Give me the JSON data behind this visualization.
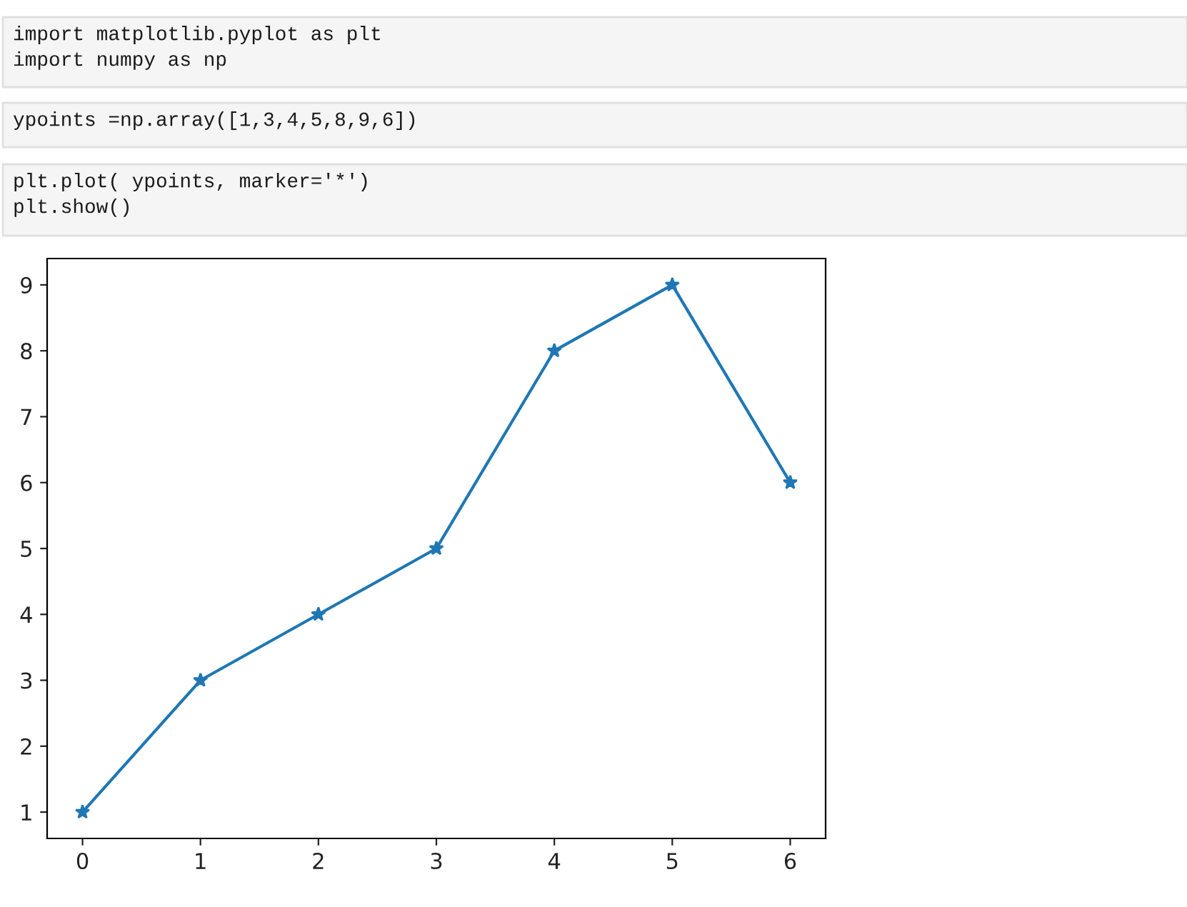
{
  "chart_data": {
    "type": "line",
    "x": [
      0,
      1,
      2,
      3,
      4,
      5,
      6
    ],
    "series": [
      {
        "color": "#1f77b4",
        "values": [
          1,
          3,
          4,
          5,
          8,
          9,
          6
        ]
      }
    ],
    "xlim": [
      -0.3,
      6.3
    ],
    "xticks": [
      0,
      1,
      2,
      3,
      4,
      5,
      6
    ],
    "ylim": [
      0.6,
      9.4
    ],
    "yticks": [
      1,
      2,
      3,
      4,
      5,
      6,
      7,
      8,
      9
    ],
    "marker": "star",
    "line_style": "solid",
    "annotations": [
      "import matplotlib.pyplot as plt\nimport numpy as np",
      "ypoints =np.array([1,3,4,5,8,9,6])",
      "plt.plot( ypoints, marker='*')\nplt.show()"
    ]
  }
}
